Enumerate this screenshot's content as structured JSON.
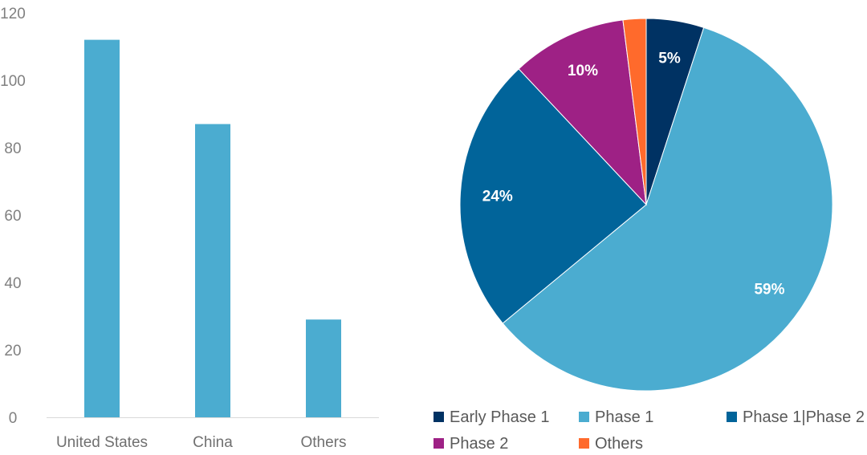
{
  "chart_data": [
    {
      "type": "bar",
      "categories": [
        "United States",
        "China",
        "Others"
      ],
      "values": [
        112,
        87,
        29
      ],
      "ylim": [
        0,
        120
      ],
      "yticks": [
        0,
        20,
        40,
        60,
        80,
        100,
        120
      ],
      "grid": false,
      "colors": {
        "bar": "#4BACD0",
        "axis": "#d9d9d9"
      }
    },
    {
      "type": "pie",
      "labels": [
        "Early Phase 1",
        "Phase 1",
        "Phase 1|Phase 2",
        "Phase 2",
        "Others"
      ],
      "values": [
        5,
        59,
        24,
        10,
        2
      ],
      "data_labels": [
        "5%",
        "59%",
        "24%",
        "10%",
        ""
      ],
      "colors": [
        "#003263",
        "#4BACD0",
        "#01649A",
        "#9E2185",
        "#FF6A2C"
      ],
      "legend_position": "bottom"
    }
  ]
}
